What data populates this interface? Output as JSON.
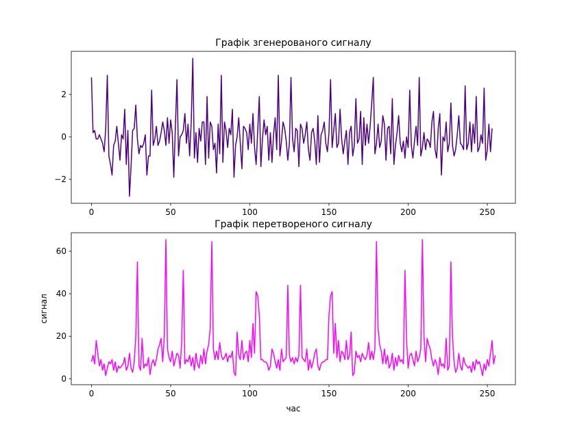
{
  "chart_data": [
    {
      "type": "line",
      "title": "Графік згенерованого сигналу",
      "color": "#4b0082",
      "xlim": [
        -12.75,
        267.75
      ],
      "ylim": [
        -3.13,
        4.03
      ],
      "xticks": [
        0,
        50,
        100,
        150,
        200,
        250
      ],
      "yticks": [
        {
          "value": -2,
          "label": "−2"
        },
        0,
        2
      ],
      "values": [
        2.8,
        0.2,
        0.3,
        -0.1,
        -0.1,
        0.1,
        -0.1,
        -0.3,
        -0.7,
        0.4,
        2.9,
        -0.9,
        -1.3,
        -1.8,
        -0.4,
        -0.2,
        0.5,
        -0.3,
        -1.1,
        0.1,
        -0.1,
        1.3,
        -1.3,
        0.3,
        -2.8,
        -1.4,
        0.3,
        0.4,
        1.5,
        -0.1,
        -0.8,
        -0.4,
        -0.5,
        -0.3,
        0.1,
        -1.8,
        -0.9,
        -0.9,
        2.2,
        -0.4,
        -0.1,
        0.5,
        -0.4,
        -0.2,
        0.2,
        0.7,
        0.3,
        -0.4,
        0.9,
        -0.3,
        0.8,
        0.2,
        -1.9,
        0.5,
        2.7,
        -0.9,
        0.0,
        0.1,
        0.3,
        1.1,
        -0.3,
        0.6,
        -0.9,
        0.7,
        3.7,
        -1.0,
        0.2,
        -1.2,
        0.4,
        -0.2,
        0.7,
        0.7,
        -1.3,
        1.9,
        -1.0,
        0.7,
        0.5,
        -0.6,
        -0.3,
        -1.7,
        0.6,
        -0.8,
        2.9,
        -1.2,
        0.7,
        0.3,
        -0.5,
        0.4,
        0.1,
        1.3,
        -1.9,
        -0.4,
        0.0,
        0.9,
        -0.3,
        -1.5,
        0.5,
        0.4,
        0.2,
        -0.6,
        0.6,
        -0.3,
        1.1,
        -0.5,
        -1.3,
        0.3,
        1.9,
        -1.4,
        -0.1,
        0.8,
        0.1,
        0.5,
        -1.1,
        0.2,
        -1.2,
        0.1,
        0.9,
        -0.6,
        2.9,
        -0.9,
        -0.2,
        0.7,
        0.4,
        -0.2,
        -1.1,
        -0.3,
        2.8,
        -0.1,
        -0.7,
        0.4,
        0.3,
        -1.4,
        0.6,
        0.4,
        -0.3,
        0.1,
        0.7,
        -0.6,
        -1.1,
        0.2,
        0.4,
        -0.2,
        -1.3,
        1.0,
        -1.2,
        0.1,
        0.3,
        0.7,
        -0.3,
        -0.7,
        0.2,
        2.7,
        -0.5,
        0.3,
        1.1,
        -0.5,
        -0.3,
        1.3,
        -0.1,
        -0.8,
        -0.2,
        0.3,
        -1.3,
        0.2,
        0.5,
        -0.9,
        -0.4,
        1.8,
        -0.3,
        -0.1,
        1.2,
        -1.3,
        0.9,
        -0.4,
        0.6,
        -0.3,
        0.5,
        1.6,
        2.8,
        -0.8,
        -0.3,
        0.6,
        -0.5,
        -0.2,
        1.0,
        0.6,
        -1.1,
        0.4,
        0.5,
        -0.8,
        1.8,
        -1.3,
        -0.4,
        0.2,
        1.0,
        -0.3,
        -0.7,
        -0.2,
        -1.0,
        0.0,
        -0.5,
        2.2,
        -0.4,
        -1.0,
        -0.2,
        0.5,
        -0.4,
        2.8,
        -0.9,
        -0.5,
        0.2,
        -0.6,
        -0.1,
        -0.2,
        -0.5,
        0.7,
        1.2,
        -0.6,
        -1.0,
        0.4,
        1.1,
        -1.8,
        0.0,
        -0.2,
        0.7,
        -0.7,
        -0.3,
        1.6,
        -0.4,
        -0.9,
        -0.6,
        0.1,
        1.0,
        -0.3,
        -0.4,
        -0.6,
        2.4,
        -0.6,
        -0.3,
        0.7,
        -0.7,
        0.6,
        -0.3,
        1.9,
        -0.7,
        -0.5,
        0.1,
        -0.3,
        2.3,
        -1.1,
        -0.6,
        0.6,
        -0.7,
        0.4
      ]
    },
    {
      "type": "line",
      "title": "Графік перетвореного сигналу",
      "xlabel": "час",
      "ylabel": "сигнал",
      "color": "#ff00ff",
      "xlim": [
        -12.75,
        267.75
      ],
      "ylim": [
        -2.8,
        68.7
      ],
      "xticks": [
        0,
        50,
        100,
        150,
        200,
        250
      ],
      "yticks": [
        0,
        20,
        40,
        60
      ],
      "values": [
        8,
        11,
        7,
        18,
        12,
        6,
        9,
        4,
        7,
        1.5,
        5,
        8,
        7,
        9,
        4,
        8,
        3,
        6,
        5,
        6,
        7,
        10,
        4,
        6,
        12,
        5,
        3,
        8,
        20,
        55,
        6,
        4,
        19,
        5,
        7,
        6,
        10,
        2,
        7,
        9,
        6,
        9,
        14,
        16,
        19,
        8,
        20,
        65.5,
        14,
        10,
        8,
        13,
        6,
        9,
        12,
        11,
        5,
        18,
        51,
        7,
        9,
        8,
        11,
        6,
        10,
        4,
        12,
        7,
        5,
        11,
        7,
        14,
        7,
        13,
        16,
        24,
        64.5,
        14,
        9,
        13,
        9,
        17,
        11,
        9,
        10,
        12,
        8,
        11,
        10,
        13,
        3,
        1.5,
        22,
        11,
        9,
        18,
        9,
        12,
        13,
        8,
        18,
        10,
        26,
        12,
        41,
        39,
        30,
        9,
        9,
        8,
        8,
        7,
        4,
        6,
        14,
        12,
        8,
        5,
        9,
        4,
        14,
        8,
        9,
        10,
        44,
        11,
        8,
        10,
        7,
        10,
        8,
        11,
        44,
        10,
        9,
        8,
        14,
        4,
        9,
        5,
        8,
        12,
        14,
        6,
        4,
        7,
        8,
        8,
        9,
        9,
        30,
        39,
        41,
        12,
        26,
        10,
        18,
        8,
        13,
        12,
        9,
        18,
        9,
        11,
        22,
        1.5,
        3,
        13,
        10,
        11,
        8,
        12,
        10,
        9,
        11,
        17,
        9,
        13,
        9,
        14,
        64.5,
        24,
        16,
        13,
        7,
        14,
        7,
        11,
        5,
        7,
        12,
        4,
        10,
        6,
        11,
        8,
        9,
        7,
        51,
        18,
        5,
        11,
        12,
        9,
        6,
        13,
        8,
        10,
        14,
        65.5,
        20,
        8,
        19,
        16,
        14,
        9,
        6,
        9,
        7,
        2,
        10,
        6,
        7,
        5,
        19,
        4,
        6,
        55,
        20,
        8,
        3,
        5,
        12,
        6,
        4,
        10,
        7,
        6,
        5,
        6,
        3,
        8,
        4,
        9,
        7,
        8,
        5,
        1.5,
        7,
        4,
        9,
        6,
        12,
        18,
        7,
        11
      ]
    }
  ]
}
